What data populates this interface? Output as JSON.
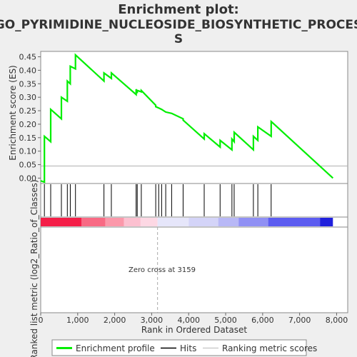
{
  "chart_data": {
    "type": "line",
    "title_line1": "Enrichment plot:",
    "title_line2": "GO_PYRIMIDINE_NUCLEOSIDE_BIOSYNTHETIC_PROCES",
    "title_line3": "S",
    "ylabel_top": "Enrichment score (ES)",
    "ylabel_bottom": "Ranked list metric (log2_Ratio_of_Classes)",
    "xlabel": "Rank in Ordered Dataset",
    "annotation": "Zero cross at 3159",
    "zero_cross": 3159,
    "xlim": [
      0,
      8300
    ],
    "ylim_top": [
      -0.02,
      0.47
    ],
    "x_ticks": [
      0,
      1000,
      2000,
      3000,
      4000,
      5000,
      6000,
      7000,
      8000
    ],
    "x_tick_labels": [
      "0",
      "1,000",
      "2,000",
      "3,000",
      "4,000",
      "5,000",
      "6,000",
      "7,000",
      "8,000"
    ],
    "y_ticks": [
      0.0,
      0.05,
      0.1,
      0.15,
      0.2,
      0.25,
      0.3,
      0.35,
      0.4,
      0.45
    ],
    "y_tick_labels": [
      "0.00",
      "0.05",
      "0.10",
      "0.15",
      "0.20",
      "0.25",
      "0.30",
      "0.35",
      "0.40",
      "0.45"
    ],
    "legend": {
      "placement": "bottom",
      "items": [
        "Enrichment profile",
        "Hits",
        "Ranking metric scores"
      ]
    },
    "hits": [
      100,
      270,
      560,
      720,
      800,
      940,
      1710,
      1910,
      2580,
      2610,
      2720,
      3110,
      3190,
      3270,
      3380,
      3540,
      3850,
      4420,
      4850,
      5170,
      5230,
      5750,
      5870,
      6230
    ],
    "series": [
      {
        "name": "Enrichment profile",
        "color": "#00ee00",
        "x": [
          0,
          100,
          100,
          270,
          270,
          560,
          560,
          720,
          720,
          800,
          800,
          940,
          940,
          1710,
          1710,
          1910,
          1910,
          2580,
          2580,
          2610,
          2610,
          2720,
          2720,
          3110,
          3110,
          3190,
          3190,
          3270,
          3270,
          3380,
          3380,
          3540,
          3540,
          3850,
          3850,
          4420,
          4420,
          4850,
          4850,
          5170,
          5170,
          5230,
          5230,
          5750,
          5750,
          5870,
          5870,
          6230,
          6230,
          7900
        ],
        "y": [
          -0.01,
          -0.015,
          0.155,
          0.135,
          0.255,
          0.22,
          0.3,
          0.285,
          0.36,
          0.35,
          0.415,
          0.405,
          0.457,
          0.36,
          0.39,
          0.37,
          0.39,
          0.31,
          0.33,
          0.315,
          0.325,
          0.32,
          0.325,
          0.27,
          0.265,
          0.26,
          0.26,
          0.255,
          0.255,
          0.245,
          0.245,
          0.24,
          0.24,
          0.22,
          0.215,
          0.145,
          0.165,
          0.115,
          0.14,
          0.105,
          0.145,
          0.135,
          0.17,
          0.105,
          0.155,
          0.14,
          0.19,
          0.155,
          0.21,
          0.0
        ]
      }
    ],
    "ranking_bands": [
      {
        "from": 0,
        "to": 1100,
        "color": "#f41e48"
      },
      {
        "from": 1100,
        "to": 1750,
        "color": "#f86a84"
      },
      {
        "from": 1750,
        "to": 2250,
        "color": "#fb98aa"
      },
      {
        "from": 2250,
        "to": 2700,
        "color": "#fcc0d0"
      },
      {
        "from": 2700,
        "to": 3159,
        "color": "#fdd8e4"
      },
      {
        "from": 3159,
        "to": 4000,
        "color": "#e6e6fa"
      },
      {
        "from": 4000,
        "to": 4800,
        "color": "#d4d4f8"
      },
      {
        "from": 4800,
        "to": 5350,
        "color": "#b8b8f6"
      },
      {
        "from": 5350,
        "to": 6150,
        "color": "#9090f4"
      },
      {
        "from": 6150,
        "to": 7550,
        "color": "#5c5cf0"
      },
      {
        "from": 7550,
        "to": 7900,
        "color": "#2020dc"
      }
    ]
  }
}
